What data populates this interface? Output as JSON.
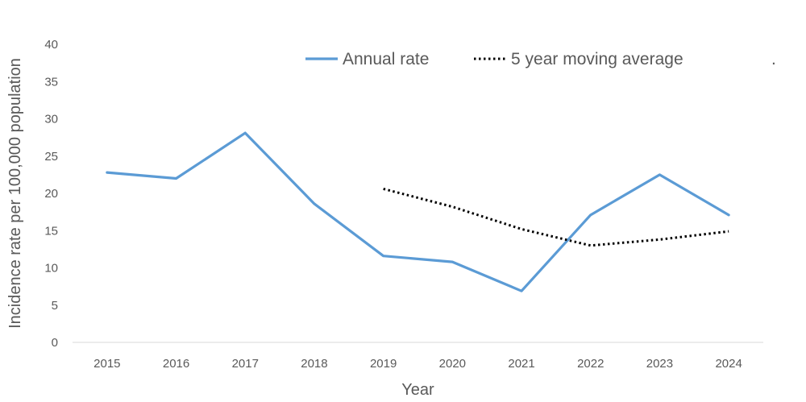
{
  "chart_data": {
    "type": "line",
    "title": "",
    "xlabel": "Year",
    "ylabel": "Incidence rate per 100,000 population",
    "categories": [
      "2015",
      "2016",
      "2017",
      "2018",
      "2019",
      "2020",
      "2021",
      "2022",
      "2023",
      "2024"
    ],
    "ylim": [
      0,
      40
    ],
    "yticks": [
      0,
      5,
      10,
      15,
      20,
      25,
      30,
      35,
      40
    ],
    "grid": false,
    "legend_position": "top",
    "legend_trailing_mark": ".",
    "series": [
      {
        "name": "Annual rate",
        "style": "solid",
        "color": "#5b9bd5",
        "values": [
          22.8,
          22.0,
          28.1,
          18.6,
          11.6,
          10.8,
          6.9,
          17.1,
          22.5,
          17.1
        ]
      },
      {
        "name": "5 year moving average",
        "style": "dotted",
        "color": "#000000",
        "values": [
          null,
          null,
          null,
          null,
          20.6,
          18.2,
          15.2,
          13.0,
          13.8,
          14.9
        ]
      }
    ]
  }
}
